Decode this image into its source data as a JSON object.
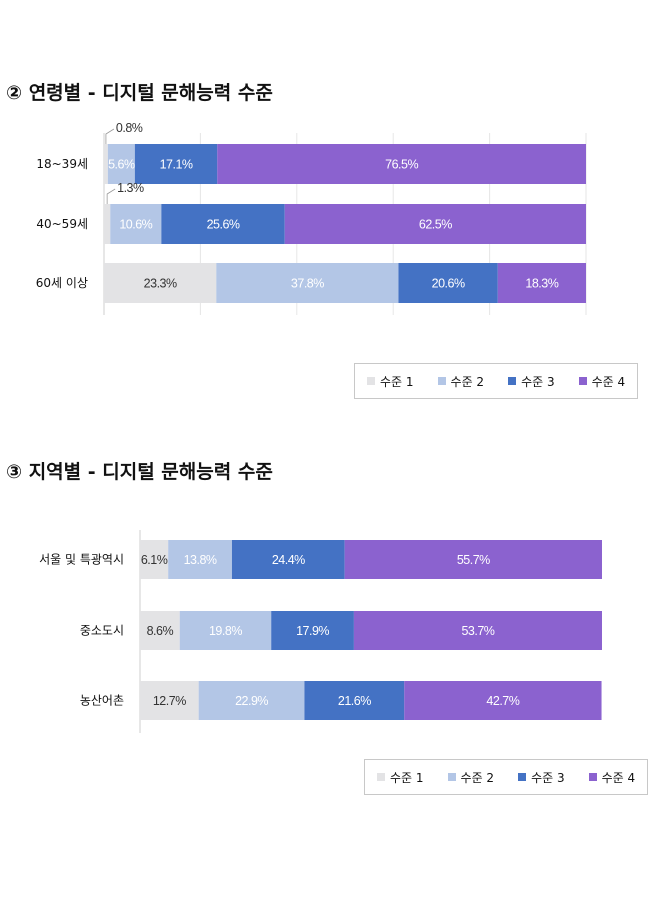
{
  "section1": {
    "title": "② 연령별 - 디지털 문해능력 수준"
  },
  "section2": {
    "title": "③ 지역별 - 디지털 문해능력 수준"
  },
  "colors": {
    "level1": "#e3e3e5",
    "level2": "#b3c6e6",
    "level3": "#4472c4",
    "level4": "#8b62cf"
  },
  "chart_data": [
    {
      "type": "bar",
      "orientation": "horizontal",
      "stacked": true,
      "title": "연령별 - 디지털 문해능력 수준",
      "categories": [
        "18~39세",
        "40~59세",
        "60세 이상"
      ],
      "series": [
        {
          "name": "수준 1",
          "values": [
            0.8,
            1.3,
            23.3
          ],
          "labels": [
            "0.8%",
            "1.3%",
            "23.3%"
          ]
        },
        {
          "name": "수준 2",
          "values": [
            5.6,
            10.6,
            37.8
          ],
          "labels": [
            "5.6%",
            "10.6%",
            "37.8%"
          ]
        },
        {
          "name": "수준 3",
          "values": [
            17.1,
            25.6,
            20.6
          ],
          "labels": [
            "17.1%",
            "25.6%",
            "20.6%"
          ]
        },
        {
          "name": "수준 4",
          "values": [
            76.5,
            62.5,
            18.3
          ],
          "labels": [
            "76.5%",
            "62.5%",
            "18.3%"
          ]
        }
      ],
      "xlim": [
        0,
        100
      ],
      "legend": "bottom-right"
    },
    {
      "type": "bar",
      "orientation": "horizontal",
      "stacked": true,
      "title": "지역별 - 디지털 문해능력 수준",
      "categories": [
        "서울 및 특광역시",
        "중소도시",
        "농산어촌"
      ],
      "series": [
        {
          "name": "수준 1",
          "values": [
            6.1,
            8.6,
            12.7
          ],
          "labels": [
            "6.1%",
            "8.6%",
            "12.7%"
          ]
        },
        {
          "name": "수준 2",
          "values": [
            13.8,
            19.8,
            22.9
          ],
          "labels": [
            "13.8%",
            "19.8%",
            "22.9%"
          ]
        },
        {
          "name": "수준 3",
          "values": [
            24.4,
            17.9,
            21.6
          ],
          "labels": [
            "24.4%",
            "17.9%",
            "21.6%"
          ]
        },
        {
          "name": "수준 4",
          "values": [
            55.7,
            53.7,
            42.7
          ],
          "labels": [
            "55.7%",
            "53.7%",
            "42.7%"
          ]
        }
      ],
      "xlim": [
        0,
        100
      ],
      "legend": "bottom-right"
    }
  ]
}
